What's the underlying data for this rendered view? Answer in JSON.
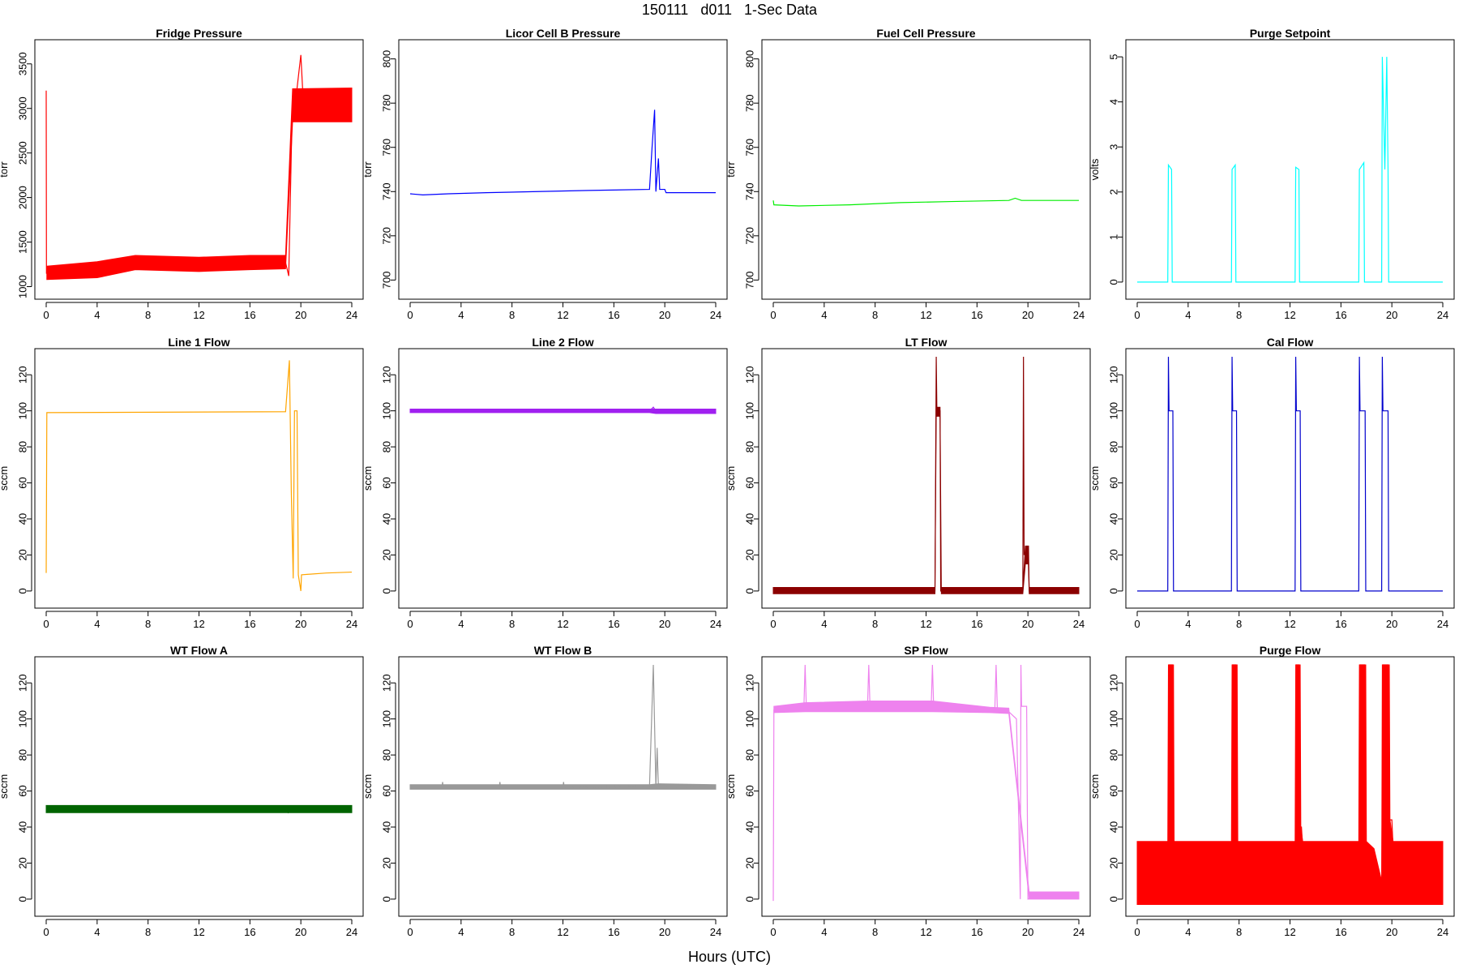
{
  "figure": {
    "title": "150111   d011   1-Sec Data",
    "xlabel": "Hours (UTC)"
  },
  "chart_data": [
    {
      "type": "line",
      "title": "Fridge Pressure",
      "ylabel": "torr",
      "color": "#ff0000",
      "xlim": [
        0,
        24
      ],
      "ylim": [
        950,
        3680
      ],
      "xticks": [
        0,
        4,
        8,
        12,
        16,
        20,
        24
      ],
      "yticks": [
        1000,
        1500,
        2000,
        2500,
        3000,
        3500
      ],
      "points": [
        [
          0,
          3200
        ],
        [
          0.02,
          1150
        ],
        [
          2,
          1150
        ],
        [
          4,
          1180
        ],
        [
          6,
          1230
        ],
        [
          8,
          1270
        ],
        [
          12,
          1260
        ],
        [
          16,
          1270
        ],
        [
          18.8,
          1270
        ],
        [
          19.05,
          1120
        ],
        [
          19.3,
          2850
        ],
        [
          19.6,
          3100
        ],
        [
          20,
          3600
        ],
        [
          20.2,
          3050
        ],
        [
          22,
          3050
        ],
        [
          24,
          3050
        ]
      ],
      "band": [
        [
          0.05,
          1080,
          1230
        ],
        [
          4,
          1100,
          1280
        ],
        [
          7,
          1190,
          1350
        ],
        [
          12,
          1170,
          1330
        ],
        [
          16,
          1190,
          1350
        ],
        [
          18.8,
          1200,
          1350
        ],
        [
          19.35,
          2850,
          3220
        ],
        [
          24,
          2850,
          3230
        ]
      ]
    },
    {
      "type": "line",
      "title": "Licor Cell B Pressure",
      "ylabel": "torr",
      "color": "#0000ff",
      "xlim": [
        0,
        24
      ],
      "ylim": [
        695,
        805
      ],
      "xticks": [
        0,
        4,
        8,
        12,
        16,
        20,
        24
      ],
      "yticks": [
        700,
        720,
        740,
        760,
        780,
        800
      ],
      "points": [
        [
          0,
          739
        ],
        [
          1,
          738.5
        ],
        [
          3,
          739
        ],
        [
          6,
          739.5
        ],
        [
          10,
          740
        ],
        [
          14,
          740.5
        ],
        [
          18.8,
          741
        ],
        [
          19,
          760
        ],
        [
          19.2,
          777
        ],
        [
          19.3,
          740
        ],
        [
          19.5,
          755
        ],
        [
          19.6,
          741
        ],
        [
          20,
          741
        ],
        [
          20.1,
          739.5
        ],
        [
          24,
          739.5
        ]
      ],
      "band": []
    },
    {
      "type": "line",
      "title": "Fuel Cell Pressure",
      "ylabel": "torr",
      "color": "#00ee00",
      "xlim": [
        0,
        24
      ],
      "ylim": [
        695,
        805
      ],
      "xticks": [
        0,
        4,
        8,
        12,
        16,
        20,
        24
      ],
      "yticks": [
        700,
        720,
        740,
        760,
        780,
        800
      ],
      "points": [
        [
          0,
          736
        ],
        [
          0.05,
          734
        ],
        [
          2,
          733.5
        ],
        [
          6,
          734
        ],
        [
          10,
          735
        ],
        [
          14,
          735.5
        ],
        [
          18.5,
          736
        ],
        [
          19,
          737
        ],
        [
          19.5,
          736
        ],
        [
          24,
          736
        ]
      ],
      "band": []
    },
    {
      "type": "line",
      "title": "Purge Setpoint",
      "ylabel": "volts",
      "color": "#00ffff",
      "xlim": [
        0,
        24
      ],
      "ylim": [
        -0.2,
        5.2
      ],
      "xticks": [
        0,
        4,
        8,
        12,
        16,
        20,
        24
      ],
      "yticks": [
        0,
        1,
        2,
        3,
        4,
        5
      ],
      "points": [
        [
          0,
          0
        ],
        [
          2.4,
          0
        ],
        [
          2.45,
          2.6
        ],
        [
          2.7,
          2.5
        ],
        [
          2.75,
          0
        ],
        [
          7.4,
          0
        ],
        [
          7.45,
          2.5
        ],
        [
          7.7,
          2.6
        ],
        [
          7.75,
          0
        ],
        [
          12.4,
          0
        ],
        [
          12.45,
          2.55
        ],
        [
          12.7,
          2.5
        ],
        [
          12.75,
          0
        ],
        [
          17.4,
          0
        ],
        [
          17.45,
          2.5
        ],
        [
          17.8,
          2.65
        ],
        [
          17.85,
          0
        ],
        [
          19.2,
          0
        ],
        [
          19.25,
          5
        ],
        [
          19.45,
          2.5
        ],
        [
          19.6,
          5
        ],
        [
          19.7,
          2.5
        ],
        [
          19.75,
          0
        ],
        [
          24,
          0
        ]
      ],
      "band": []
    },
    {
      "type": "line",
      "title": "Line 1 Flow",
      "ylabel": "sccm",
      "color": "#ffa500",
      "xlim": [
        0,
        24
      ],
      "ylim": [
        -5,
        130
      ],
      "xticks": [
        0,
        4,
        8,
        12,
        16,
        20,
        24
      ],
      "yticks": [
        0,
        20,
        40,
        60,
        80,
        100,
        120
      ],
      "points": [
        [
          0,
          10
        ],
        [
          0.05,
          99
        ],
        [
          18.8,
          99.5
        ],
        [
          19.1,
          128
        ],
        [
          19.25,
          55
        ],
        [
          19.4,
          7
        ],
        [
          19.5,
          100
        ],
        [
          19.7,
          100
        ],
        [
          19.8,
          9
        ],
        [
          20,
          0
        ],
        [
          20.05,
          9
        ],
        [
          22,
          10
        ],
        [
          24,
          10.5
        ]
      ],
      "band": []
    },
    {
      "type": "line",
      "title": "Line 2 Flow",
      "ylabel": "sccm",
      "color": "#a020f0",
      "xlim": [
        0,
        24
      ],
      "ylim": [
        -5,
        130
      ],
      "xticks": [
        0,
        4,
        8,
        12,
        16,
        20,
        24
      ],
      "yticks": [
        0,
        20,
        40,
        60,
        80,
        100,
        120
      ],
      "points": [
        [
          0,
          100
        ],
        [
          18.8,
          100
        ],
        [
          19.1,
          102
        ],
        [
          19.3,
          100
        ],
        [
          24,
          99.5
        ]
      ],
      "band": [
        [
          0,
          99,
          101
        ],
        [
          18.8,
          99,
          101
        ],
        [
          19.3,
          98.5,
          101
        ],
        [
          24,
          98.5,
          101
        ]
      ]
    },
    {
      "type": "line",
      "title": "LT Flow",
      "ylabel": "sccm",
      "color": "#8b0000",
      "xlim": [
        0,
        24
      ],
      "ylim": [
        -5,
        130
      ],
      "xticks": [
        0,
        4,
        8,
        12,
        16,
        20,
        24
      ],
      "yticks": [
        0,
        20,
        40,
        60,
        80,
        100,
        120
      ],
      "points": [
        [
          0,
          0
        ],
        [
          12.7,
          0
        ],
        [
          12.8,
          130
        ],
        [
          12.85,
          100
        ],
        [
          13.1,
          100
        ],
        [
          13.15,
          0
        ],
        [
          18.9,
          0
        ],
        [
          19.6,
          2
        ],
        [
          19.65,
          130
        ],
        [
          19.7,
          20
        ],
        [
          20,
          25
        ],
        [
          20.1,
          0
        ],
        [
          24,
          0
        ]
      ],
      "band": [
        [
          0,
          -1.5,
          2
        ],
        [
          12.7,
          -1.5,
          2
        ],
        [
          12.8,
          97,
          102
        ],
        [
          13.1,
          97,
          102
        ],
        [
          13.2,
          -1.5,
          2
        ],
        [
          19.6,
          -1.5,
          2
        ],
        [
          19.8,
          15,
          25
        ],
        [
          20.05,
          15,
          25
        ],
        [
          20.1,
          -1.5,
          2
        ],
        [
          24,
          -1.5,
          2
        ]
      ]
    },
    {
      "type": "line",
      "title": "Cal Flow",
      "ylabel": "sccm",
      "color": "#0000cd",
      "xlim": [
        0,
        24
      ],
      "ylim": [
        -5,
        130
      ],
      "xticks": [
        0,
        4,
        8,
        12,
        16,
        20,
        24
      ],
      "yticks": [
        0,
        20,
        40,
        60,
        80,
        100,
        120
      ],
      "points": [
        [
          0,
          0
        ],
        [
          2.4,
          0
        ],
        [
          2.45,
          130
        ],
        [
          2.5,
          100
        ],
        [
          2.8,
          100
        ],
        [
          2.85,
          0
        ],
        [
          7.4,
          0
        ],
        [
          7.45,
          130
        ],
        [
          7.5,
          100
        ],
        [
          7.8,
          100
        ],
        [
          7.85,
          0
        ],
        [
          12.4,
          0
        ],
        [
          12.45,
          130
        ],
        [
          12.5,
          100
        ],
        [
          12.8,
          100
        ],
        [
          12.85,
          0
        ],
        [
          17.4,
          0
        ],
        [
          17.45,
          130
        ],
        [
          17.5,
          100
        ],
        [
          17.9,
          100
        ],
        [
          17.95,
          0
        ],
        [
          19.2,
          0
        ],
        [
          19.25,
          130
        ],
        [
          19.3,
          100
        ],
        [
          19.7,
          100
        ],
        [
          19.75,
          0
        ],
        [
          24,
          0
        ]
      ],
      "band": []
    },
    {
      "type": "line",
      "title": "WT Flow A",
      "ylabel": "sccm",
      "color": "#006400",
      "xlim": [
        0,
        24
      ],
      "ylim": [
        -5,
        130
      ],
      "xticks": [
        0,
        4,
        8,
        12,
        16,
        20,
        24
      ],
      "yticks": [
        0,
        20,
        40,
        60,
        80,
        100,
        120
      ],
      "points": [
        [
          0,
          50
        ],
        [
          18.8,
          50
        ],
        [
          19,
          48
        ],
        [
          19.2,
          50
        ],
        [
          24,
          50
        ]
      ],
      "band": [
        [
          0,
          48,
          52
        ],
        [
          18.8,
          48,
          52
        ],
        [
          19.2,
          48,
          52
        ],
        [
          24,
          48,
          52
        ]
      ]
    },
    {
      "type": "line",
      "title": "WT Flow B",
      "ylabel": "sccm",
      "color": "#999999",
      "xlim": [
        0,
        24
      ],
      "ylim": [
        -5,
        130
      ],
      "xticks": [
        0,
        4,
        8,
        12,
        16,
        20,
        24
      ],
      "yticks": [
        0,
        20,
        40,
        60,
        80,
        100,
        120
      ],
      "points": [
        [
          0,
          62
        ],
        [
          2.5,
          62
        ],
        [
          2.55,
          65
        ],
        [
          2.6,
          62
        ],
        [
          7,
          62
        ],
        [
          7.05,
          65
        ],
        [
          7.1,
          62
        ],
        [
          12,
          62
        ],
        [
          12.05,
          65
        ],
        [
          12.1,
          62
        ],
        [
          18.8,
          62.5
        ],
        [
          19.1,
          130
        ],
        [
          19.3,
          62
        ],
        [
          19.4,
          84
        ],
        [
          19.5,
          62
        ],
        [
          24,
          62.5
        ]
      ],
      "band": [
        [
          0,
          61,
          63.5
        ],
        [
          18.8,
          61,
          63.5
        ],
        [
          19.5,
          61,
          64
        ],
        [
          24,
          61,
          63.5
        ]
      ]
    },
    {
      "type": "line",
      "title": "SP Flow",
      "ylabel": "sccm",
      "color": "#ee82ee",
      "xlim": [
        0,
        24
      ],
      "ylim": [
        -5,
        130
      ],
      "xticks": [
        0,
        4,
        8,
        12,
        16,
        20,
        24
      ],
      "yticks": [
        0,
        20,
        40,
        60,
        80,
        100,
        120
      ],
      "points": [
        [
          0,
          -1
        ],
        [
          0.05,
          105
        ],
        [
          2.4,
          105
        ],
        [
          2.5,
          130
        ],
        [
          2.6,
          106
        ],
        [
          7.4,
          106
        ],
        [
          7.5,
          130
        ],
        [
          7.6,
          106
        ],
        [
          12.4,
          106
        ],
        [
          12.5,
          130
        ],
        [
          12.6,
          106
        ],
        [
          17.4,
          105
        ],
        [
          17.5,
          130
        ],
        [
          17.6,
          105
        ],
        [
          18.5,
          104
        ],
        [
          19.1,
          100
        ],
        [
          19.3,
          38
        ],
        [
          19.4,
          0
        ],
        [
          19.45,
          130
        ],
        [
          19.5,
          107
        ],
        [
          19.9,
          107
        ],
        [
          20,
          0
        ],
        [
          21,
          2
        ],
        [
          24,
          2
        ]
      ],
      "band": [
        [
          0.05,
          103.5,
          107
        ],
        [
          2.5,
          104,
          109
        ],
        [
          7.5,
          104,
          110
        ],
        [
          12.5,
          104,
          110
        ],
        [
          17,
          103.5,
          106.5
        ],
        [
          18.5,
          103,
          106
        ],
        [
          20.1,
          0,
          4
        ],
        [
          24,
          0,
          4
        ]
      ]
    },
    {
      "type": "line",
      "title": "Purge Flow",
      "ylabel": "sccm",
      "color": "#ff0000",
      "xlim": [
        0,
        24
      ],
      "ylim": [
        -5,
        130
      ],
      "xticks": [
        0,
        4,
        8,
        12,
        16,
        20,
        24
      ],
      "yticks": [
        0,
        20,
        40,
        60,
        80,
        100,
        120
      ],
      "points": [
        [
          0,
          28
        ],
        [
          2.45,
          28
        ],
        [
          2.5,
          130
        ],
        [
          2.75,
          130
        ],
        [
          2.8,
          28
        ],
        [
          7.45,
          28
        ],
        [
          7.5,
          130
        ],
        [
          7.75,
          130
        ],
        [
          7.8,
          28
        ],
        [
          12.45,
          28
        ],
        [
          12.5,
          130
        ],
        [
          12.7,
          130
        ],
        [
          12.75,
          40
        ],
        [
          12.9,
          40
        ],
        [
          13,
          28
        ],
        [
          17.45,
          28
        ],
        [
          17.5,
          130
        ],
        [
          17.85,
          130
        ],
        [
          17.9,
          28
        ],
        [
          18.6,
          20
        ],
        [
          19.2,
          0
        ],
        [
          19.3,
          130
        ],
        [
          19.7,
          130
        ],
        [
          19.8,
          44
        ],
        [
          20,
          44
        ],
        [
          20.1,
          28
        ],
        [
          24,
          28
        ]
      ],
      "band": [
        [
          0,
          -3,
          32
        ],
        [
          2.4,
          -3,
          32
        ],
        [
          2.45,
          -3,
          130
        ],
        [
          2.85,
          -3,
          130
        ],
        [
          2.9,
          -3,
          32
        ],
        [
          7.4,
          -3,
          32
        ],
        [
          7.45,
          -3,
          130
        ],
        [
          7.85,
          -3,
          130
        ],
        [
          7.9,
          -3,
          32
        ],
        [
          12.4,
          -3,
          32
        ],
        [
          12.45,
          -3,
          130
        ],
        [
          12.8,
          -3,
          130
        ],
        [
          12.85,
          -3,
          40
        ],
        [
          13,
          -3,
          32
        ],
        [
          17.4,
          -3,
          32
        ],
        [
          17.45,
          -3,
          130
        ],
        [
          17.95,
          -3,
          130
        ],
        [
          18,
          -3,
          32
        ],
        [
          18.6,
          -3,
          28
        ],
        [
          19.2,
          -3,
          10
        ],
        [
          19.25,
          -3,
          130
        ],
        [
          19.8,
          -3,
          130
        ],
        [
          19.85,
          -3,
          44
        ],
        [
          20.1,
          -3,
          32
        ],
        [
          24,
          -3,
          32
        ]
      ]
    }
  ]
}
